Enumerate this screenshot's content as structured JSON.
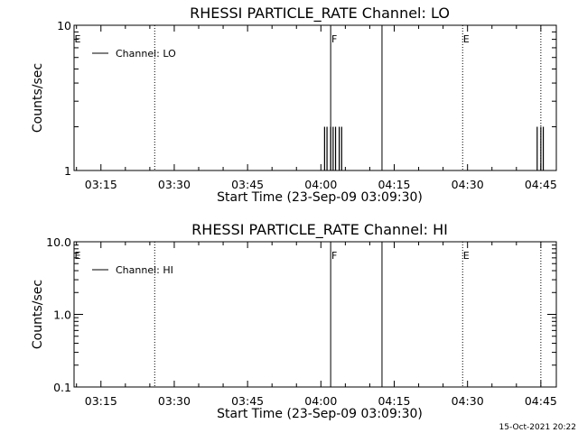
{
  "timestamp": "15-Oct-2021 20:22",
  "chart_data": [
    {
      "type": "line",
      "title": "RHESSI PARTICLE_RATE Channel: LO",
      "xlabel": "Start Time (23-Sep-09 03:09:30)",
      "ylabel": "Counts/sec",
      "y_scale": "log",
      "ylim": [
        1,
        10
      ],
      "y_ticks": [
        {
          "value": 1,
          "label": "1"
        },
        {
          "value": 10,
          "label": "10"
        }
      ],
      "xlim": [
        "03:09:30",
        "04:48:10"
      ],
      "x_ticks": [
        "03:15",
        "03:30",
        "03:45",
        "04:00",
        "04:15",
        "04:30",
        "04:45"
      ],
      "legend": {
        "placement": "top-left",
        "entries": [
          "Channel: LO"
        ]
      },
      "markers": [
        {
          "time": "03:09:30",
          "label": "E",
          "style": "none"
        },
        {
          "time": "03:26:00",
          "label": "",
          "style": "dotted"
        },
        {
          "time": "04:02:00",
          "label": "F",
          "style": "solid"
        },
        {
          "time": "04:12:30",
          "label": "",
          "style": "solid"
        },
        {
          "time": "04:29:00",
          "label": "E",
          "style": "dotted"
        },
        {
          "time": "04:45:00",
          "label": "",
          "style": "dotted"
        }
      ],
      "series": [
        {
          "name": "Channel: LO",
          "x": [
            "04:00:30",
            "04:00:45",
            "04:01:00",
            "04:01:15",
            "04:01:30",
            "04:01:45",
            "04:02:00",
            "04:02:15",
            "04:02:30",
            "04:02:45",
            "04:03:00",
            "04:03:15",
            "04:03:30",
            "04:03:45",
            "04:04:00",
            "04:04:15",
            "04:04:30",
            "04:04:45",
            "04:44:00",
            "04:44:15",
            "04:44:30",
            "04:44:45",
            "04:45:00",
            "04:45:15",
            "04:45:30"
          ],
          "y": [
            1,
            2,
            1,
            2,
            1,
            1,
            2,
            1,
            2,
            1,
            2,
            1,
            1,
            2,
            1,
            2,
            1,
            1,
            1,
            2,
            1,
            1,
            2,
            1,
            2
          ]
        }
      ]
    },
    {
      "type": "line",
      "title": "RHESSI PARTICLE_RATE Channel: HI",
      "xlabel": "Start Time (23-Sep-09 03:09:30)",
      "ylabel": "Counts/sec",
      "y_scale": "log",
      "ylim": [
        0.1,
        10
      ],
      "y_ticks": [
        {
          "value": 0.1,
          "label": "0.1"
        },
        {
          "value": 1,
          "label": "1.0"
        },
        {
          "value": 10,
          "label": "10.0"
        }
      ],
      "xlim": [
        "03:09:30",
        "04:48:10"
      ],
      "x_ticks": [
        "03:15",
        "03:30",
        "03:45",
        "04:00",
        "04:15",
        "04:30",
        "04:45"
      ],
      "legend": {
        "placement": "top-left",
        "entries": [
          "Channel: HI"
        ]
      },
      "markers": [
        {
          "time": "03:09:30",
          "label": "E",
          "style": "none"
        },
        {
          "time": "03:26:00",
          "label": "",
          "style": "dotted"
        },
        {
          "time": "04:02:00",
          "label": "F",
          "style": "solid"
        },
        {
          "time": "04:12:30",
          "label": "",
          "style": "solid"
        },
        {
          "time": "04:29:00",
          "label": "E",
          "style": "dotted"
        },
        {
          "time": "04:45:00",
          "label": "",
          "style": "dotted"
        }
      ],
      "series": [
        {
          "name": "Channel: HI",
          "x": [],
          "y": []
        }
      ]
    }
  ]
}
